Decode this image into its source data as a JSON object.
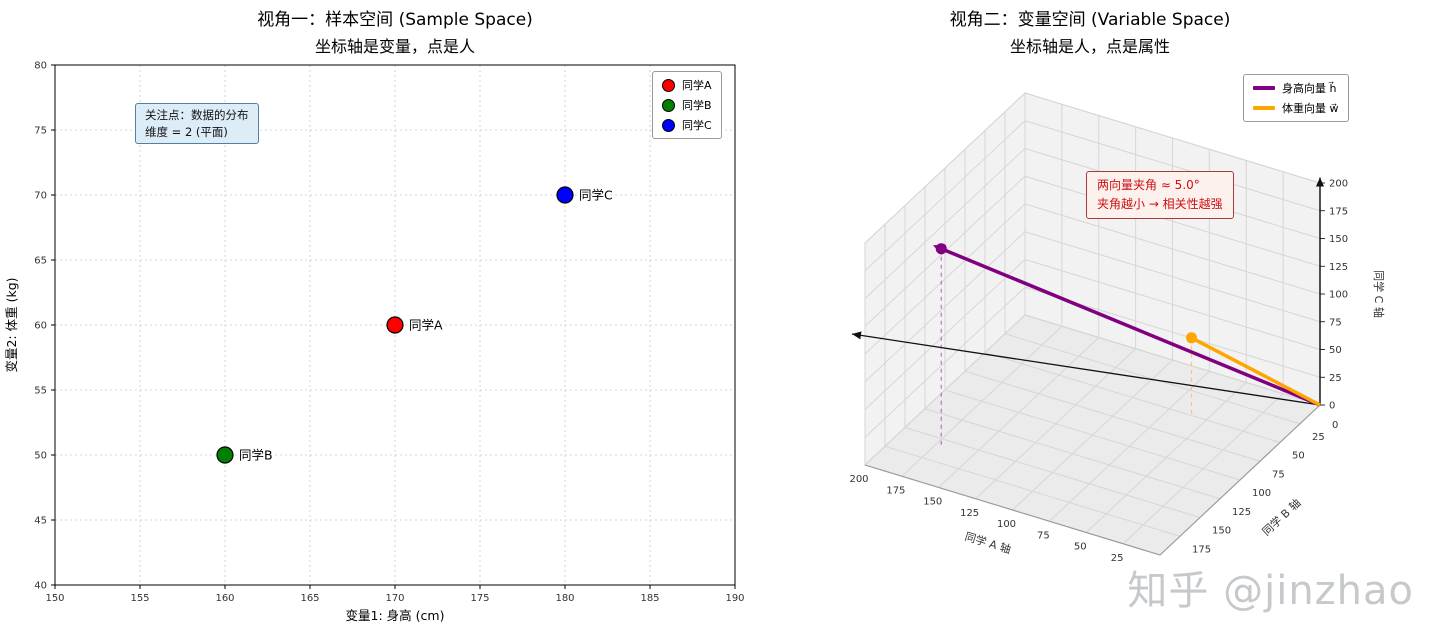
{
  "watermark": "知乎 @jinzhao",
  "chart_data": [
    {
      "type": "scatter",
      "title": "视角一：样本空间 (Sample Space)",
      "subtitle": "坐标轴是变量，点是人",
      "xlabel": "变量1: 身高 (cm)",
      "ylabel": "变量2: 体重 (kg)",
      "xlim": [
        150,
        190
      ],
      "ylim": [
        40,
        80
      ],
      "xticks": [
        150,
        155,
        160,
        165,
        170,
        175,
        180,
        185,
        190
      ],
      "yticks": [
        40,
        45,
        50,
        55,
        60,
        65,
        70,
        75,
        80
      ],
      "grid": true,
      "legend_position": "upper right",
      "points": [
        {
          "label": "同学A",
          "x": 170,
          "y": 60,
          "color": "#ff0000"
        },
        {
          "label": "同学B",
          "x": 160,
          "y": 50,
          "color": "#008000"
        },
        {
          "label": "同学C",
          "x": 180,
          "y": 70,
          "color": "#0000ff"
        }
      ],
      "annotation": {
        "lines": [
          "关注点：数据的分布",
          "维度 = 2 (平面)"
        ],
        "bg": "#dcedf8",
        "border": "#53809c"
      }
    },
    {
      "type": "vector3d",
      "title": "视角二：变量空间 (Variable Space)",
      "subtitle": "坐标轴是人，点是属性",
      "axes": {
        "x": {
          "label": "同学 A 轴",
          "ticks": [
            200,
            175,
            150,
            125,
            100,
            75,
            50,
            25
          ],
          "range": [
            0,
            200
          ]
        },
        "y": {
          "label": "同学 B 轴",
          "ticks": [
            25,
            50,
            75,
            100,
            125,
            150,
            175
          ],
          "zero_label": "0",
          "range": [
            0,
            200
          ]
        },
        "z": {
          "label": "同学 C 轴",
          "ticks": [
            0,
            25,
            50,
            75,
            100,
            125,
            150,
            175,
            200
          ],
          "range": [
            0,
            200
          ]
        }
      },
      "vectors": [
        {
          "name": "身高向量 h⃗",
          "components": [
            170,
            160,
            180
          ],
          "color": "#800080"
        },
        {
          "name": "体重向量 w⃗",
          "components": [
            60,
            50,
            70
          ],
          "color": "#ffa500"
        }
      ],
      "annotation": {
        "lines": [
          "两向量夹角 ≈ 5.0°",
          "夹角越小 → 相关性越强"
        ],
        "color": "#cc1111",
        "bg": "#fdf1ee",
        "border": "#a33c3c"
      },
      "legend_position": "upper right"
    }
  ]
}
